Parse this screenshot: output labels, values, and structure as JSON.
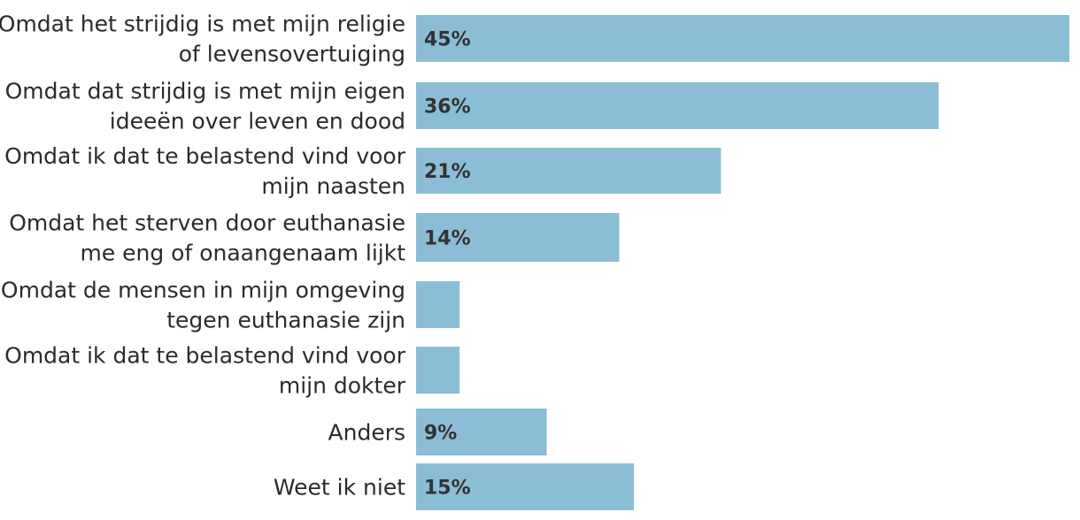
{
  "chart_data": {
    "type": "bar",
    "orientation": "horizontal",
    "categories": [
      [
        "Omdat het strijdig is met mijn religie",
        "of levensovertuiging"
      ],
      [
        "Omdat dat strijdig is met mijn eigen",
        "ideeën over leven en dood"
      ],
      [
        "Omdat ik dat te belastend vind voor",
        "mijn naasten"
      ],
      [
        "Omdat het sterven door euthanasie",
        "me eng of onaangenaam lijkt"
      ],
      [
        "Omdat de mensen in mijn omgeving",
        "tegen euthanasie zijn"
      ],
      [
        "Omdat ik dat te belastend vind voor",
        "mijn dokter"
      ],
      [
        "Anders"
      ],
      [
        "Weet ik niet"
      ]
    ],
    "values": [
      45,
      36,
      21,
      14,
      3,
      3,
      9,
      15
    ],
    "value_labels": [
      "45%",
      "36%",
      "21%",
      "14%",
      "",
      "",
      "9%",
      "15%"
    ],
    "xlim": [
      0,
      45
    ],
    "grid": false,
    "bar_color": "#8bbdd6",
    "label_color": "#333333"
  }
}
